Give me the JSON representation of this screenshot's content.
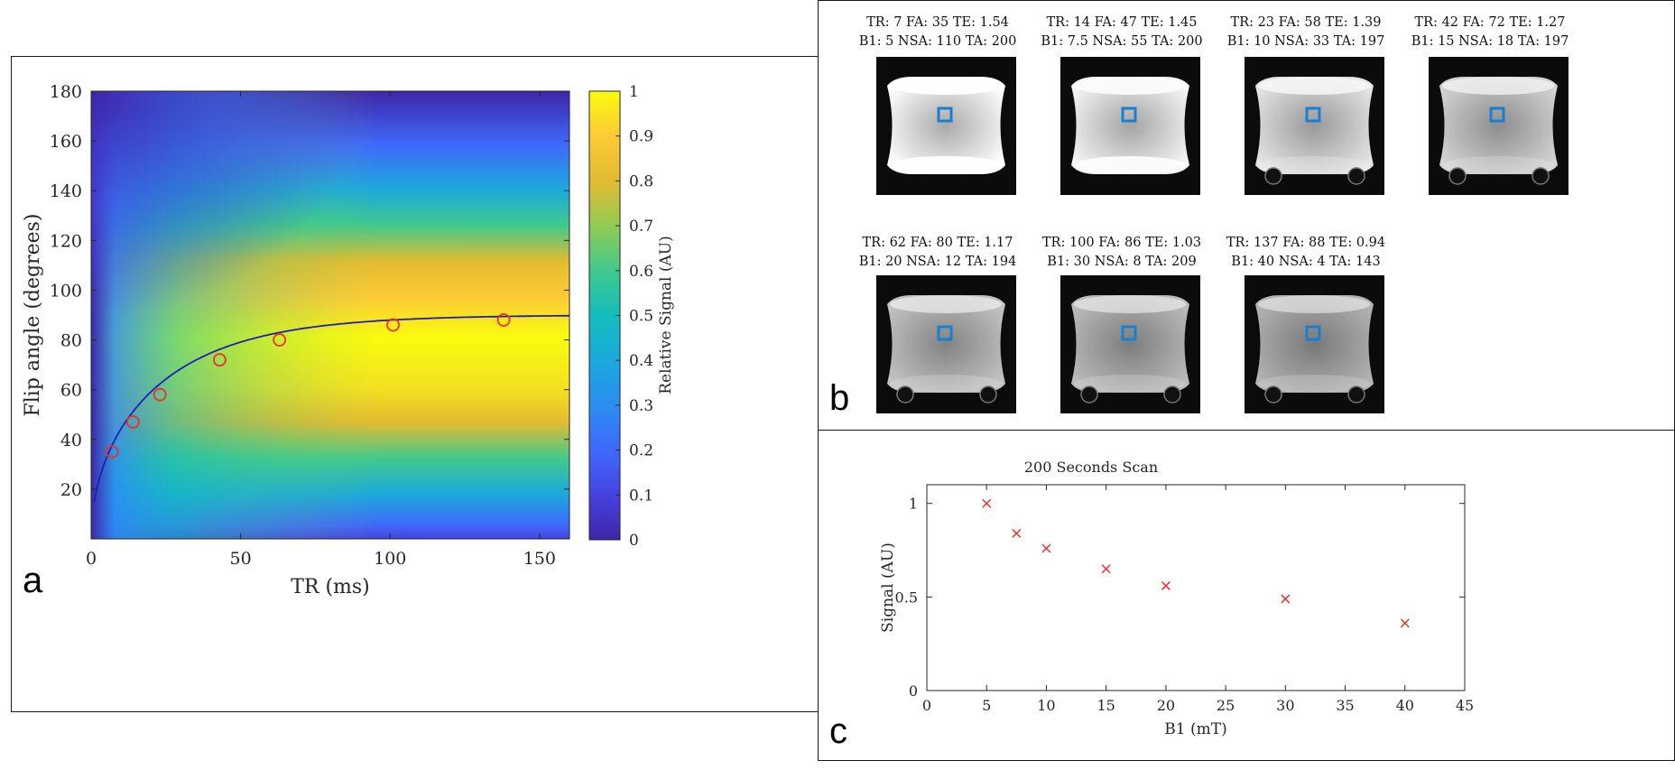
{
  "panels": {
    "a": {
      "letter": "a",
      "heatmap": {
        "type": "heatmap",
        "xlabel": "TR (ms)",
        "ylabel": "Flip angle (degrees)",
        "xlim": [
          0,
          160
        ],
        "ylim": [
          0,
          180
        ],
        "xticks": [
          0,
          50,
          100,
          150
        ],
        "yticks": [
          20,
          40,
          60,
          80,
          100,
          120,
          140,
          160,
          180
        ],
        "colorbar_label": "Relative Signal (AU)",
        "colorbar_ticks": [
          0,
          0.1,
          0.2,
          0.3,
          0.4,
          0.5,
          0.6,
          0.7,
          0.8,
          0.9,
          1
        ],
        "colorbar_tick_labels": [
          "0",
          "0.1",
          "0.2",
          "0.3",
          "0.4",
          "0.5",
          "0.6",
          "0.7",
          "0.8",
          "0.9",
          "1"
        ],
        "curve_color": "#1f1fb4",
        "marker_color": "#e8312b",
        "points": [
          {
            "x": 7,
            "y": 35
          },
          {
            "x": 14,
            "y": 47
          },
          {
            "x": 23,
            "y": 58
          },
          {
            "x": 43,
            "y": 72
          },
          {
            "x": 63,
            "y": 80
          },
          {
            "x": 101,
            "y": 86
          },
          {
            "x": 138,
            "y": 88
          }
        ]
      }
    },
    "b": {
      "letter": "b",
      "roi_color": "#1a7fd0",
      "scans": [
        {
          "line1": "TR: 7 FA: 35 TE: 1.54",
          "line2": "B1: 5 NSA: 110 TA: 200",
          "brightness": 1.0
        },
        {
          "line1": "TR: 14 FA: 47 TE: 1.45",
          "line2": "B1: 7.5 NSA: 55 TA: 200",
          "brightness": 0.95
        },
        {
          "line1": "TR: 23 FA: 58 TE: 1.39",
          "line2": "B1: 10 NSA: 33 TA: 197",
          "brightness": 0.85
        },
        {
          "line1": "TR: 42 FA: 72 TE: 1.27",
          "line2": "B1: 15 NSA: 18 TA: 197",
          "brightness": 0.75
        },
        {
          "line1": "TR: 62 FA: 80 TE: 1.17",
          "line2": "B1: 20 NSA: 12 TA: 194",
          "brightness": 0.65
        },
        {
          "line1": "TR: 100 FA: 86 TE: 1.03",
          "line2": "B1: 30 NSA: 8 TA: 209",
          "brightness": 0.6
        },
        {
          "line1": "TR: 137 FA: 88 TE: 0.94",
          "line2": "B1: 40 NSA: 4 TA: 143",
          "brightness": 0.55
        }
      ]
    },
    "c": {
      "letter": "c",
      "chart_data": {
        "type": "scatter",
        "title": "200 Seconds Scan",
        "xlabel": "B1 (mT)",
        "ylabel": "Signal (AU)",
        "xlim": [
          0,
          45
        ],
        "ylim": [
          0,
          1.1
        ],
        "xticks": [
          0,
          5,
          10,
          15,
          20,
          25,
          30,
          35,
          40,
          45
        ],
        "yticks": [
          0,
          0.5,
          1
        ],
        "ytick_labels": [
          "0",
          "0.5",
          "1"
        ],
        "marker": "x",
        "marker_color": "#e8312b",
        "x": [
          5,
          7.5,
          10,
          15,
          20,
          30,
          40
        ],
        "y": [
          1.0,
          0.84,
          0.76,
          0.65,
          0.56,
          0.49,
          0.36
        ]
      }
    }
  }
}
